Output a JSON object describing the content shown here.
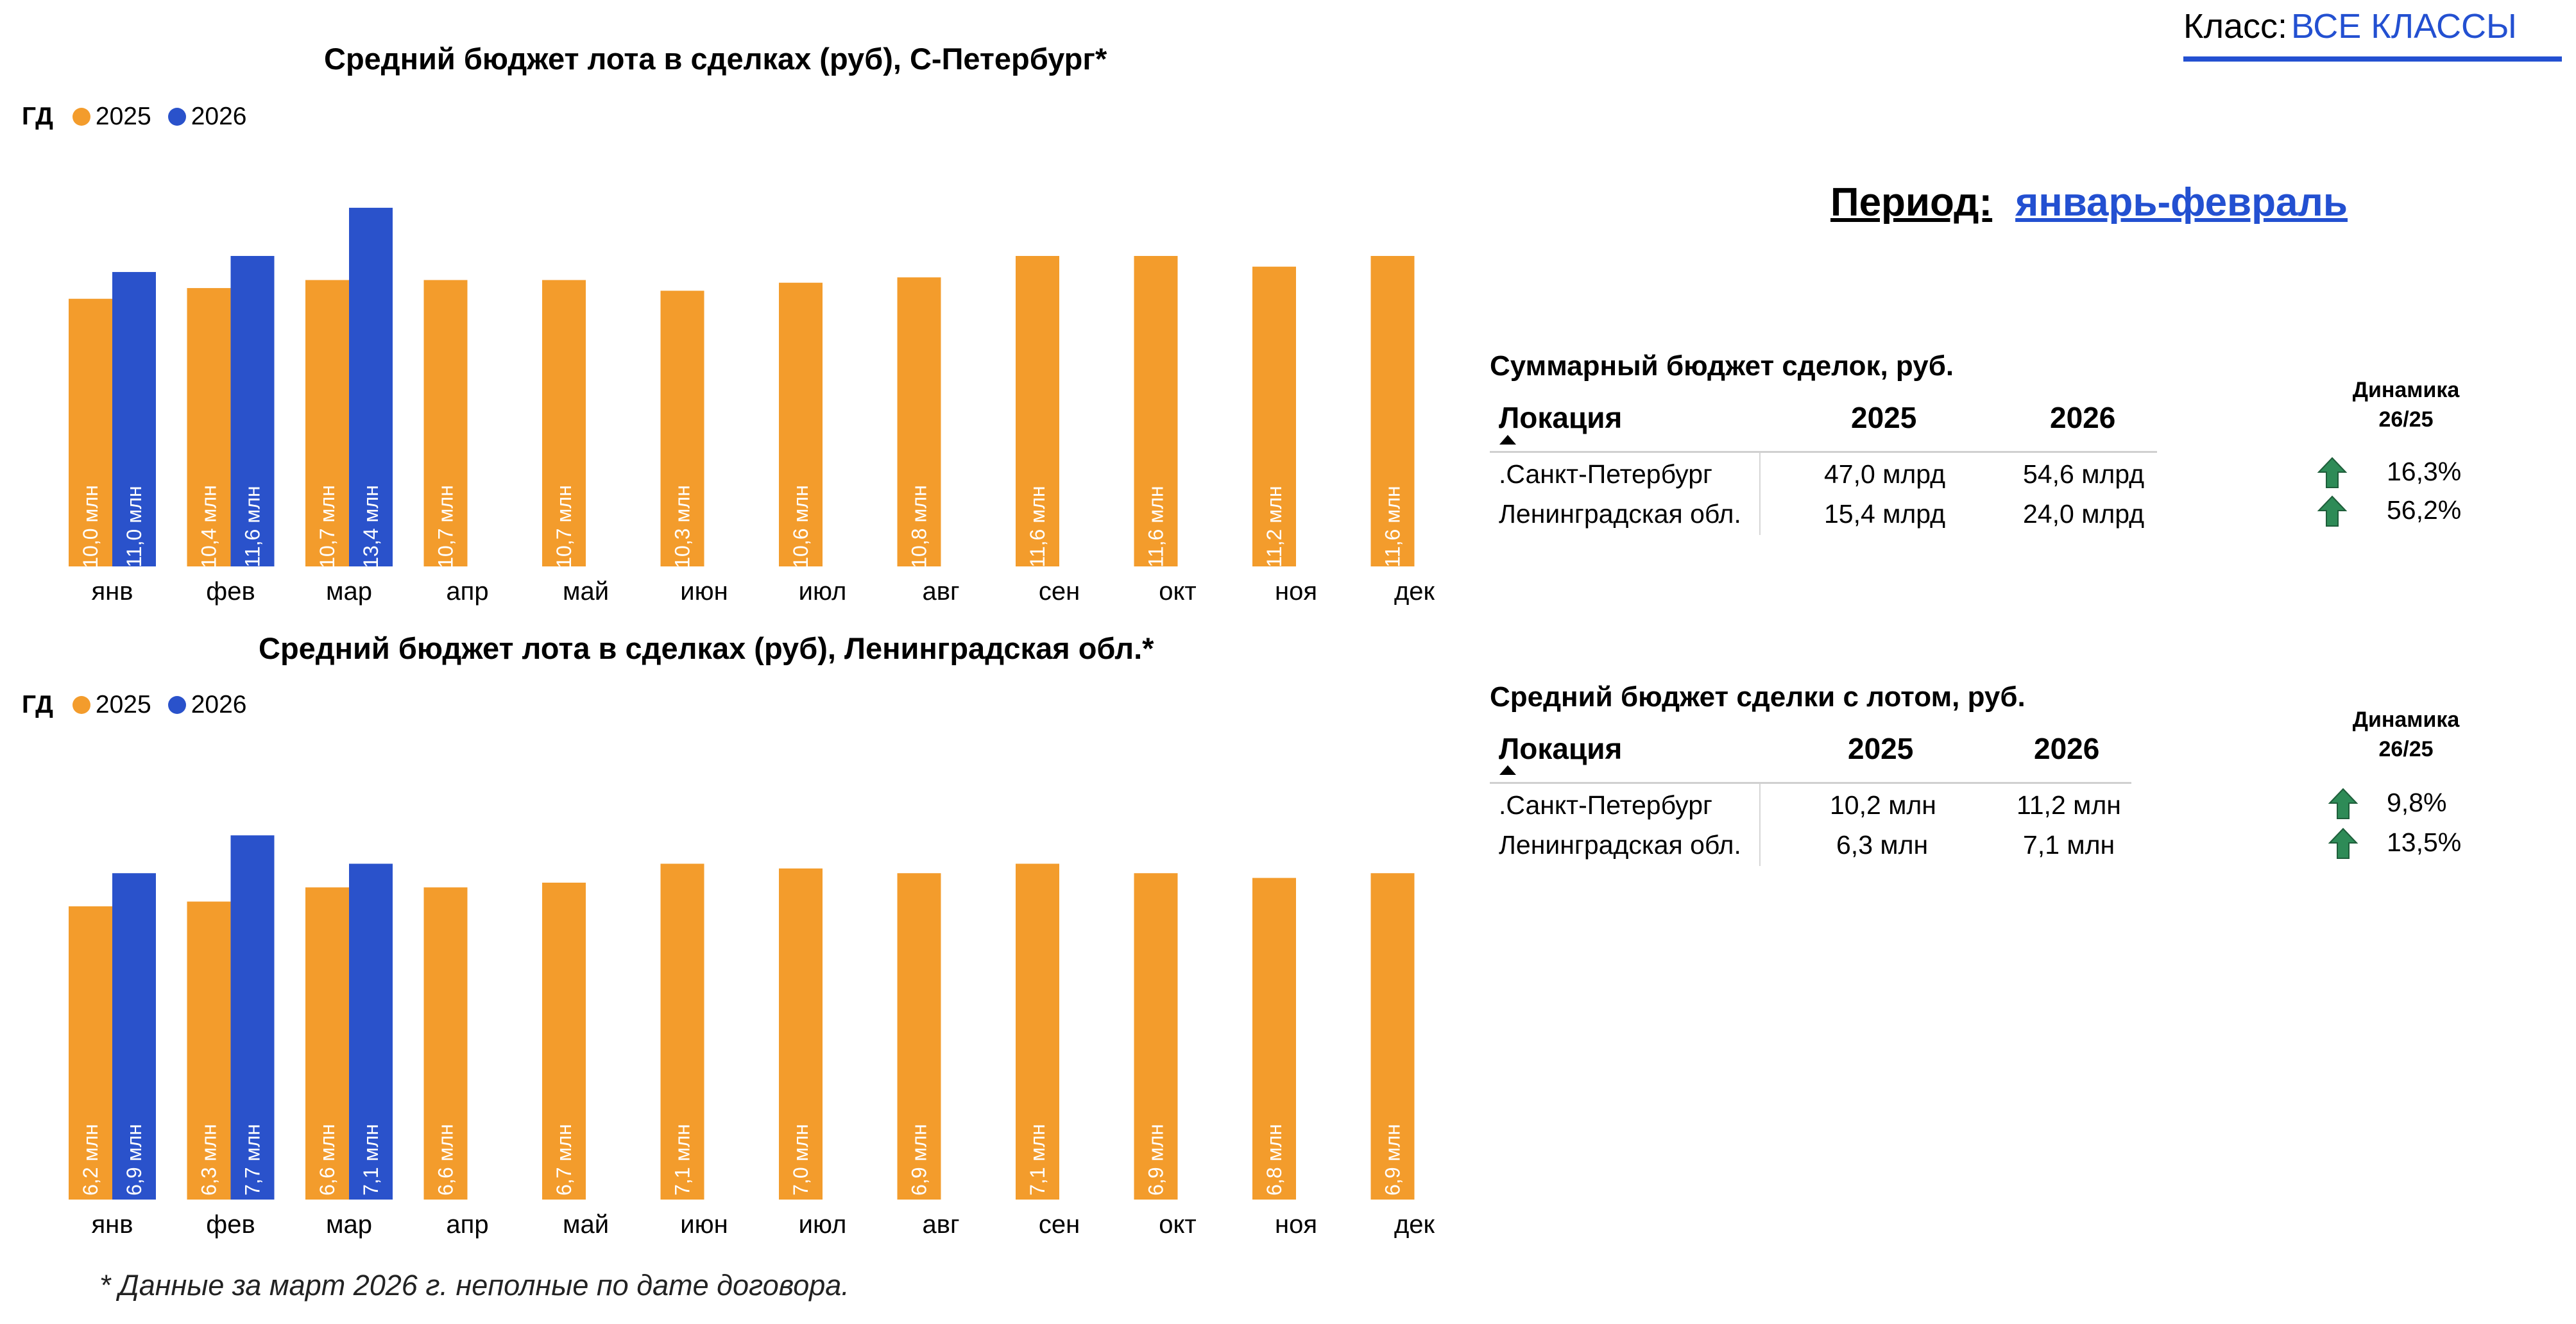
{
  "header": {
    "class_label": "Класс:",
    "class_value": "ВСЕ КЛАССЫ",
    "period_label": "Период:",
    "period_value": "январь-февраль"
  },
  "colors": {
    "y2025": "#f39c2c",
    "y2026": "#2a52cb",
    "arrow": "#2e8b57",
    "accent": "#2350d1"
  },
  "legend": {
    "gd": "ГД",
    "y2025": "2025",
    "y2026": "2026"
  },
  "chart_data": [
    {
      "type": "bar",
      "title": "Средний бюджет  лота в сделках (руб), С-Петербург*",
      "categories": [
        "янв",
        "фев",
        "мар",
        "апр",
        "май",
        "июн",
        "июл",
        "авг",
        "сен",
        "окт",
        "ноя",
        "дек"
      ],
      "series": [
        {
          "name": "2025",
          "values": [
            10.0,
            10.4,
            10.7,
            10.7,
            10.7,
            10.3,
            10.6,
            10.8,
            11.6,
            11.6,
            11.2,
            11.6
          ],
          "labels": [
            "10,0 млн",
            "10,4 млн",
            "10,7 млн",
            "10,7 млн",
            "10,7 млн",
            "10,3 млн",
            "10,6 млн",
            "10,8 млн",
            "11,6 млн",
            "11,6 млн",
            "11,2 млн",
            "11,6 млн"
          ]
        },
        {
          "name": "2026",
          "values": [
            11.0,
            11.6,
            13.4,
            null,
            null,
            null,
            null,
            null,
            null,
            null,
            null,
            null
          ],
          "labels": [
            "11,0 млн",
            "11,6 млн",
            "13,4 млн",
            "",
            "",
            "",
            "",
            "",
            "",
            "",
            "",
            ""
          ]
        }
      ],
      "ylim": [
        0,
        14.5
      ]
    },
    {
      "type": "bar",
      "title": "Средний бюджет  лота в сделках (руб), Ленинградская обл.*",
      "categories": [
        "янв",
        "фев",
        "мар",
        "апр",
        "май",
        "июн",
        "июл",
        "авг",
        "сен",
        "окт",
        "ноя",
        "дек"
      ],
      "series": [
        {
          "name": "2025",
          "values": [
            6.2,
            6.3,
            6.6,
            6.6,
            6.7,
            7.1,
            7.0,
            6.9,
            7.1,
            6.9,
            6.8,
            6.9
          ],
          "labels": [
            "6,2 млн",
            "6,3 млн",
            "6,6 млн",
            "6,6 млн",
            "6,7 млн",
            "7,1 млн",
            "7,0 млн",
            "6,9 млн",
            "7,1 млн",
            "6,9 млн",
            "6,8 млн",
            "6,9 млн"
          ]
        },
        {
          "name": "2026",
          "values": [
            6.9,
            7.7,
            7.1,
            null,
            null,
            null,
            null,
            null,
            null,
            null,
            null,
            null
          ],
          "labels": [
            "6,9 млн",
            "7,7 млн",
            "7,1 млн",
            "",
            "",
            "",
            "",
            "",
            "",
            "",
            "",
            ""
          ]
        }
      ],
      "ylim": [
        0,
        8.3
      ]
    }
  ],
  "tables": [
    {
      "title": "Суммарный бюджет сделок, руб.",
      "col_location": "Локация",
      "col_2025": "2025",
      "col_2026": "2026",
      "dyn_head_1": "Динамика",
      "dyn_head_2": "26/25",
      "rows": [
        {
          "location": ".Санкт-Петербург",
          "v2025": "47,0 млрд",
          "v2026": "54,6 млрд",
          "dyn": "16,3%",
          "trend": "up-arrow-icon"
        },
        {
          "location": "Ленинградская обл.",
          "v2025": "15,4 млрд",
          "v2026": "24,0 млрд",
          "dyn": "56,2%",
          "trend": "up-arrow-icon"
        }
      ]
    },
    {
      "title": "Средний бюджет сделки с лотом, руб.",
      "col_location": "Локация",
      "col_2025": "2025",
      "col_2026": "2026",
      "dyn_head_1": "Динамика",
      "dyn_head_2": "26/25",
      "rows": [
        {
          "location": ".Санкт-Петербург",
          "v2025": "10,2 млн",
          "v2026": "11,2 млн",
          "dyn": "9,8%",
          "trend": "up-arrow-icon"
        },
        {
          "location": "Ленинградская обл.",
          "v2025": "6,3 млн",
          "v2026": "7,1 млн",
          "dyn": "13,5%",
          "trend": "up-arrow-icon"
        }
      ]
    }
  ],
  "footnote": "* Данные за март 2026 г. неполные по дате договора."
}
